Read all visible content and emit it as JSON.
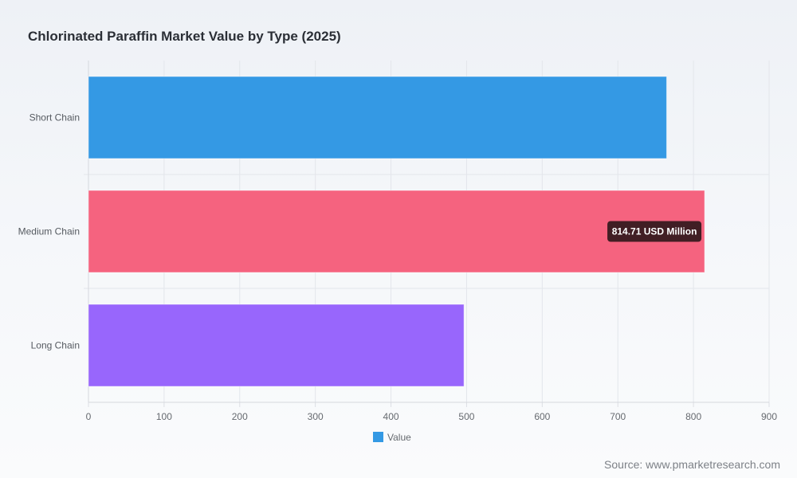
{
  "page": {
    "title": "Chlorinated Paraffin Market Value by Type (2025)",
    "source": "Source: www.pmarketresearch.com"
  },
  "chart_data": {
    "type": "bar",
    "orientation": "horizontal",
    "title": "Chlorinated Paraffin Market Value by Type (2025)",
    "categories": [
      "Short Chain",
      "Medium Chain",
      "Long Chain"
    ],
    "series": [
      {
        "name": "Value",
        "values": [
          764.5,
          814.71,
          496.5
        ],
        "colors": [
          "#3499e4",
          "#f5637f",
          "#9866fc"
        ]
      }
    ],
    "xlim": [
      0,
      900
    ],
    "x_ticks": [
      0,
      100,
      200,
      300,
      400,
      500,
      600,
      700,
      800,
      900
    ],
    "grid": true,
    "legend": {
      "position": "bottom-center",
      "entries": [
        {
          "label": "Value",
          "color": "#3499e4"
        }
      ]
    },
    "tooltip": {
      "category": "Medium Chain",
      "text": "814.71 USD Million"
    }
  }
}
